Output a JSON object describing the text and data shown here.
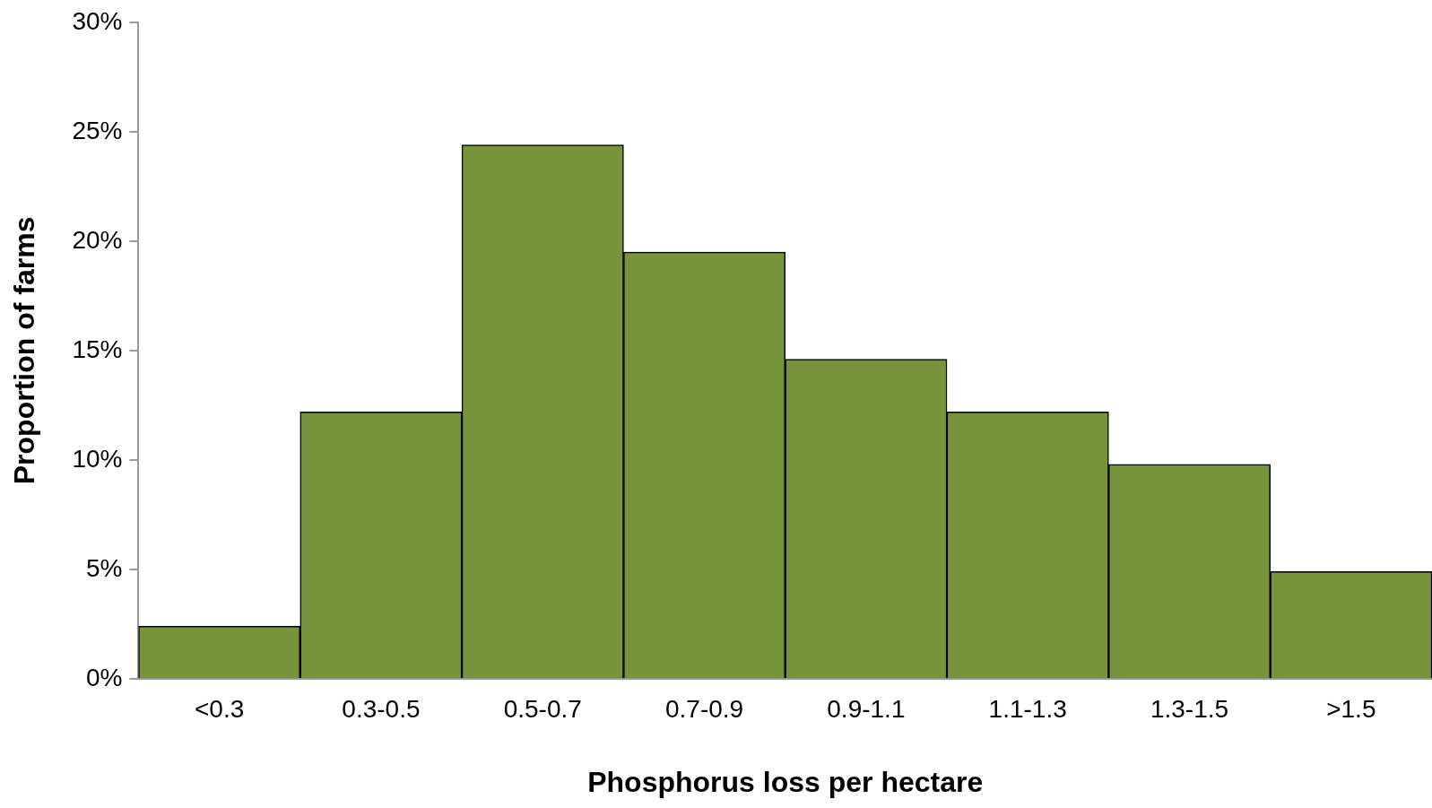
{
  "chart_data": {
    "type": "bar",
    "xlabel": "Phosphorus loss per hectare",
    "ylabel": "Proportion of farms",
    "categories": [
      "<0.3",
      "0.3-0.5",
      "0.5-0.7",
      "0.7-0.9",
      "0.9-1.1",
      "1.1-1.3",
      "1.3-1.5",
      ">1.5"
    ],
    "values": [
      2.4,
      12.2,
      24.4,
      19.5,
      14.6,
      12.2,
      9.8,
      4.9
    ],
    "color": "#77933c",
    "ylim": [
      0,
      30
    ],
    "yticks": [
      {
        "value": 0,
        "label": "0%"
      },
      {
        "value": 5,
        "label": "5%"
      },
      {
        "value": 10,
        "label": "10%"
      },
      {
        "value": 15,
        "label": "15%"
      },
      {
        "value": 20,
        "label": "20%"
      },
      {
        "value": 25,
        "label": "25%"
      },
      {
        "value": 30,
        "label": "30%"
      }
    ],
    "grid": false,
    "legend": false
  }
}
